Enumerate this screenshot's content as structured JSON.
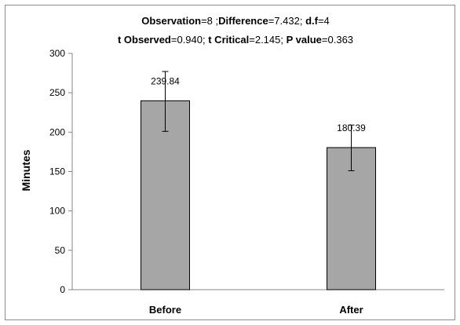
{
  "chart_data": {
    "type": "bar",
    "title_lines": [
      [
        {
          "text": "Observation",
          "bold": true
        },
        {
          "text": "=8 ;",
          "bold": false
        },
        {
          "text": "Difference",
          "bold": true
        },
        {
          "text": "=7.432; ",
          "bold": false
        },
        {
          "text": "d.f",
          "bold": true
        },
        {
          "text": "=4",
          "bold": false
        }
      ],
      [
        {
          "text": "t Observed",
          "bold": true
        },
        {
          "text": "=0.940; ",
          "bold": false
        },
        {
          "text": "t Critical",
          "bold": true
        },
        {
          "text": "=2.145; ",
          "bold": false
        },
        {
          "text": "P value",
          "bold": true
        },
        {
          "text": "=0.363",
          "bold": false
        }
      ]
    ],
    "categories": [
      "Before",
      "After"
    ],
    "values": [
      239.84,
      180.39
    ],
    "data_labels": [
      "239.84",
      "180.39"
    ],
    "error_high": [
      277,
      209
    ],
    "error_low": [
      201,
      151
    ],
    "ylabel": "Minutes",
    "xlabel": "",
    "ylim": [
      0,
      300
    ],
    "yticks": [
      0,
      50,
      100,
      150,
      200,
      250,
      300
    ],
    "grid": false,
    "legend": "none",
    "colors": {
      "bar_fill": "#a6a6a6",
      "bar_stroke": "#000000",
      "axis": "#868686",
      "frame": "#8c8c8c"
    }
  }
}
